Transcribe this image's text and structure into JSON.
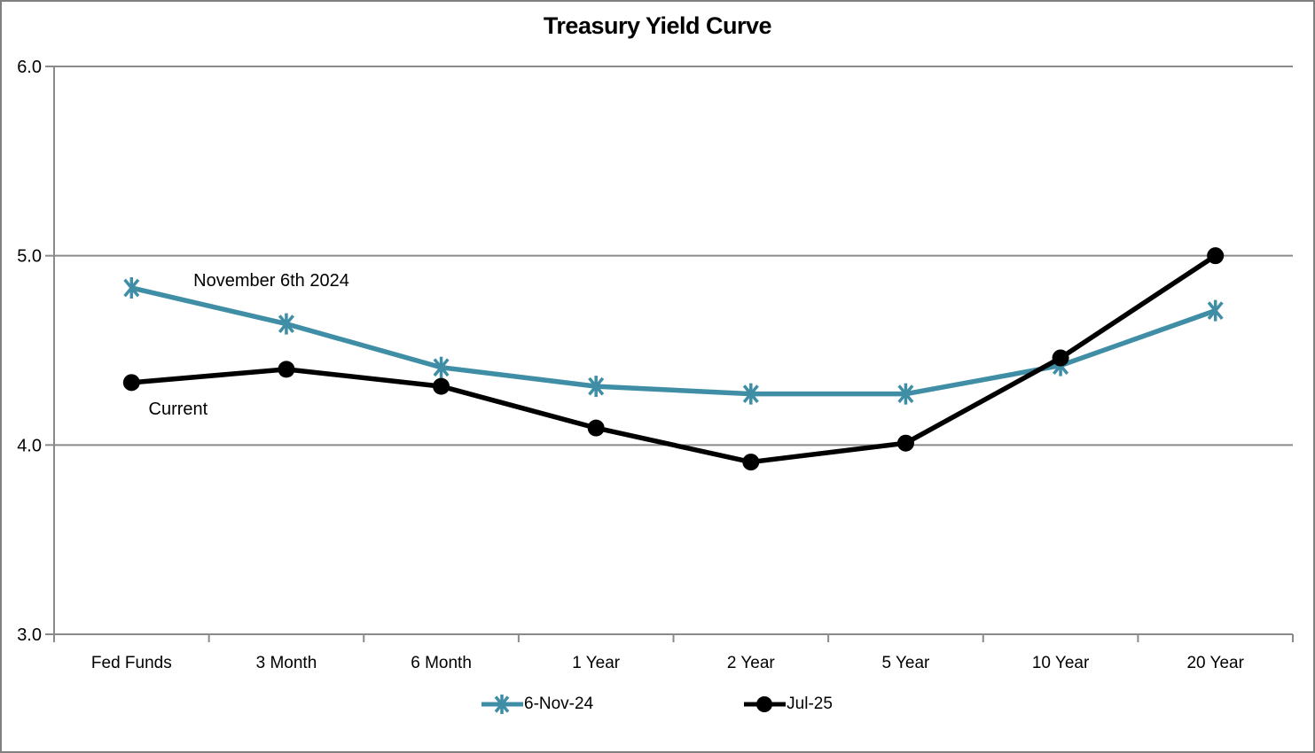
{
  "chart_data": {
    "type": "line",
    "title": "Treasury Yield Curve",
    "categories": [
      "Fed Funds",
      "3 Month",
      "6 Month",
      "1 Year",
      "2 Year",
      "5 Year",
      "10 Year",
      "20 Year"
    ],
    "series": [
      {
        "name": "6-Nov-24",
        "color": "#3F8EA6",
        "marker": "asterisk",
        "values": [
          4.83,
          4.64,
          4.41,
          4.31,
          4.27,
          4.27,
          4.42,
          4.71
        ]
      },
      {
        "name": "Jul-25",
        "color": "#000000",
        "marker": "circle",
        "values": [
          4.33,
          4.4,
          4.31,
          4.09,
          3.91,
          4.01,
          4.46,
          5.0
        ]
      }
    ],
    "annotations": [
      {
        "text": "November 6th 2024",
        "x_category": 0.4,
        "value": 4.84
      },
      {
        "text": "Current",
        "x_category": 0.11,
        "value": 4.16
      }
    ],
    "ylim": [
      3.0,
      6.0
    ],
    "yticks": [
      3.0,
      4.0,
      5.0,
      6.0
    ],
    "ytick_labels": [
      "3.0",
      "4.0",
      "5.0",
      "6.0"
    ],
    "grid": true,
    "legend_position": "bottom",
    "axis_color": "#8A8A8A",
    "border_color": "#808080",
    "text_color": "#000000"
  }
}
